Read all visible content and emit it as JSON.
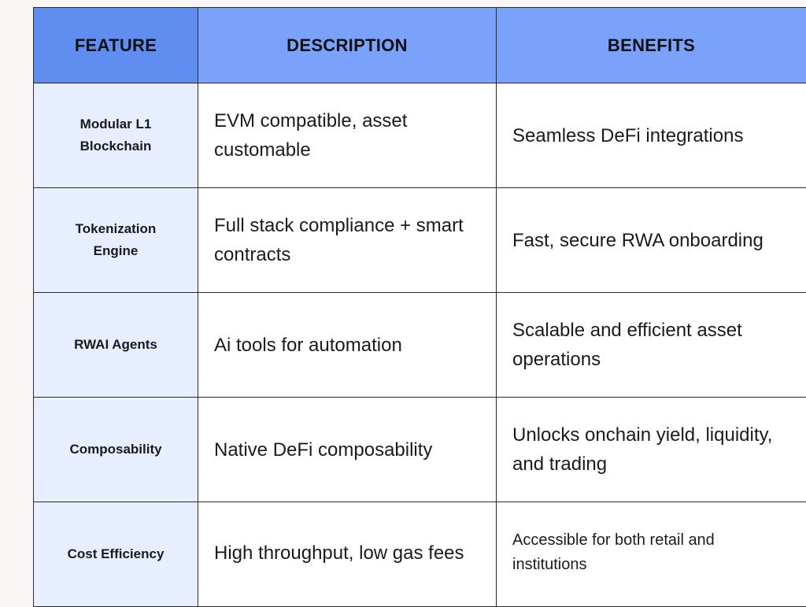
{
  "headers": {
    "feature": "FEATURE",
    "description": "DESCRIPTION",
    "benefits": "BENEFITS"
  },
  "rows": [
    {
      "feature": "Modular L1 Blockchain",
      "description": "EVM compatible, asset customable",
      "benefits": "Seamless DeFi integrations"
    },
    {
      "feature": "Tokenization Engine",
      "description": "Full stack compliance  + smart contracts",
      "benefits": "Fast, secure RWA onboarding"
    },
    {
      "feature": "RWAI Agents",
      "description": "Ai tools for automation",
      "benefits": "Scalable and efficient asset operations"
    },
    {
      "feature": "Composability",
      "description": "Native DeFi composability",
      "benefits": "Unlocks onchain yield, liquidity, and trading"
    },
    {
      "feature": "Cost Efficiency",
      "description": "High throughput, low gas fees",
      "benefits": "Accessible for both retail and institutions"
    }
  ],
  "colors": {
    "header_bg": "#7aa2fb",
    "feature_header_bg": "#5f8ef0",
    "feature_cell_bg": "#e6eeff",
    "cell_bg": "#ffffff",
    "page_bg": "#fbf6f6"
  }
}
